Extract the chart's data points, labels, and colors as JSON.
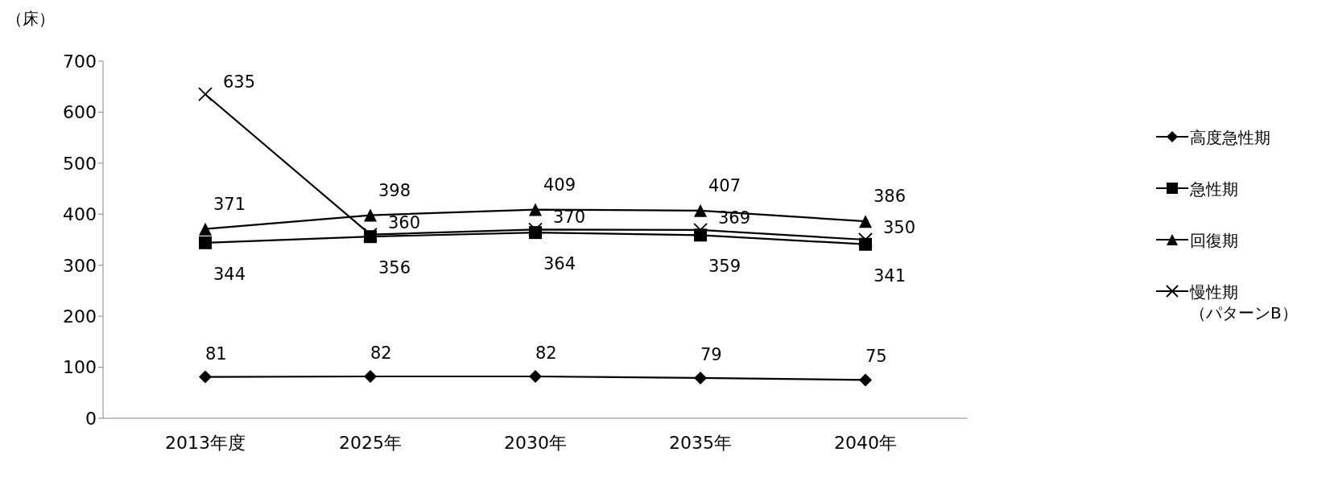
{
  "chart_data": {
    "type": "line",
    "ylabel": "（床）",
    "categories": [
      "2013年度",
      "2025年",
      "2030年",
      "2035年",
      "2040年"
    ],
    "series": [
      {
        "name": "高度急性期",
        "color": "#000000",
        "marker": "diamond",
        "values": [
          81,
          82,
          82,
          79,
          75
        ]
      },
      {
        "name": "急性期",
        "color": "#000000",
        "marker": "square",
        "values": [
          344,
          356,
          364,
          359,
          341
        ]
      },
      {
        "name": "回復期",
        "color": "#000000",
        "marker": "triangle",
        "values": [
          371,
          398,
          409,
          407,
          386
        ]
      },
      {
        "name": "慢性期（パターンB）",
        "color": "#000000",
        "marker": "cross",
        "values": [
          635,
          360,
          370,
          369,
          350
        ]
      }
    ],
    "ylim": [
      0,
      700
    ],
    "yticks": [
      0,
      100,
      200,
      300,
      400,
      500,
      600,
      700
    ],
    "grid": false,
    "legend": "right",
    "data_labels": true
  }
}
